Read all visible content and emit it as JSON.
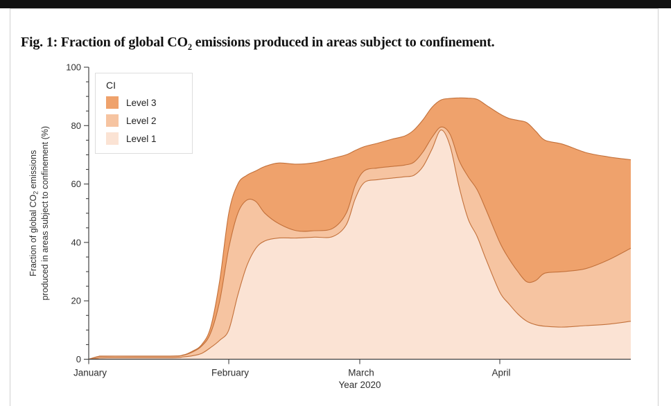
{
  "figure": {
    "title_part1": "Fig. 1: Fraction of global CO",
    "title_sub": "2",
    "title_part2": " emissions produced in areas subject to confinement."
  },
  "chart_data": {
    "type": "area",
    "title": "Fig. 1: Fraction of global CO2 emissions produced in areas subject to confinement.",
    "xlabel": "Year 2020",
    "ylabel_line1_pre": "Fraction of global CO",
    "ylabel_line1_sub": "2",
    "ylabel_line1_post": " emissions",
    "ylabel_line2": "produced in areas subject to confinement (%)",
    "ylim": [
      0,
      100
    ],
    "y_major_ticks": [
      0,
      20,
      40,
      60,
      80,
      100
    ],
    "y_minor_step": 5,
    "x_domain_days": [
      0,
      120
    ],
    "x_tick_days": [
      0,
      31,
      60,
      91
    ],
    "x_tick_labels": [
      "January",
      "February",
      "March",
      "April"
    ],
    "legend": {
      "title": "CI",
      "entries": [
        {
          "label": "Level 3",
          "color": "#efa26c"
        },
        {
          "label": "Level 2",
          "color": "#f6c4a1"
        },
        {
          "label": "Level 1",
          "color": "#fbe3d4"
        }
      ]
    },
    "values_note": "cumulative stacked top boundary, % of global CO2 emissions; days counted from 1 January 2020",
    "days": [
      0,
      2,
      4,
      18,
      21,
      23,
      25,
      27,
      29,
      31,
      33,
      35,
      37,
      39,
      42,
      46,
      50,
      54,
      57,
      59,
      61,
      64,
      67,
      70,
      72,
      74,
      76,
      78,
      80,
      82,
      84,
      86,
      88,
      91,
      93,
      95,
      97,
      99,
      101,
      105,
      110,
      115,
      120
    ],
    "series": [
      {
        "name": "Level 1",
        "color": "#fbe3d4",
        "values": [
          0,
          0.3,
          0.5,
          0.5,
          0.8,
          1.2,
          2,
          4,
          6.5,
          10,
          22,
          32,
          38,
          40.5,
          41.5,
          41.5,
          41.8,
          42,
          46,
          55,
          60.5,
          61.5,
          62,
          62.5,
          63,
          66,
          72,
          78.5,
          73,
          59,
          48,
          42,
          34,
          23,
          19,
          15.5,
          13,
          11.8,
          11.3,
          11,
          11.5,
          12,
          13
        ]
      },
      {
        "name": "Level 2",
        "color": "#f6c4a1",
        "values": [
          0,
          0.8,
          1,
          1,
          1.4,
          2.5,
          4.5,
          9,
          20,
          38,
          50,
          54.5,
          54,
          50,
          46.5,
          44,
          44,
          44.8,
          50,
          59.5,
          64.5,
          65.5,
          66,
          66.5,
          67.5,
          71,
          76,
          79.5,
          77,
          68,
          62.5,
          58,
          51,
          40,
          34.5,
          30,
          26.5,
          27,
          29.5,
          30,
          31,
          34,
          38
        ]
      },
      {
        "name": "Level 3",
        "color": "#efa26c",
        "values": [
          0,
          0.9,
          1.1,
          1.1,
          1.5,
          2.8,
          5,
          11,
          27,
          50,
          60,
          63,
          64.5,
          66,
          67.2,
          66.8,
          67.3,
          68.8,
          70,
          71.5,
          72.8,
          74,
          75.3,
          76.5,
          78.5,
          82,
          86.3,
          88.8,
          89.3,
          89.5,
          89.4,
          89,
          87,
          84,
          82.5,
          81.8,
          81,
          78,
          75,
          73.6,
          70.8,
          69.3,
          68.3
        ]
      }
    ],
    "outline_color": "#c2703a",
    "axis_color": "#3f3f3f",
    "label_color": "#2e2e2e",
    "legend_position": "upper-left",
    "grid": false
  }
}
